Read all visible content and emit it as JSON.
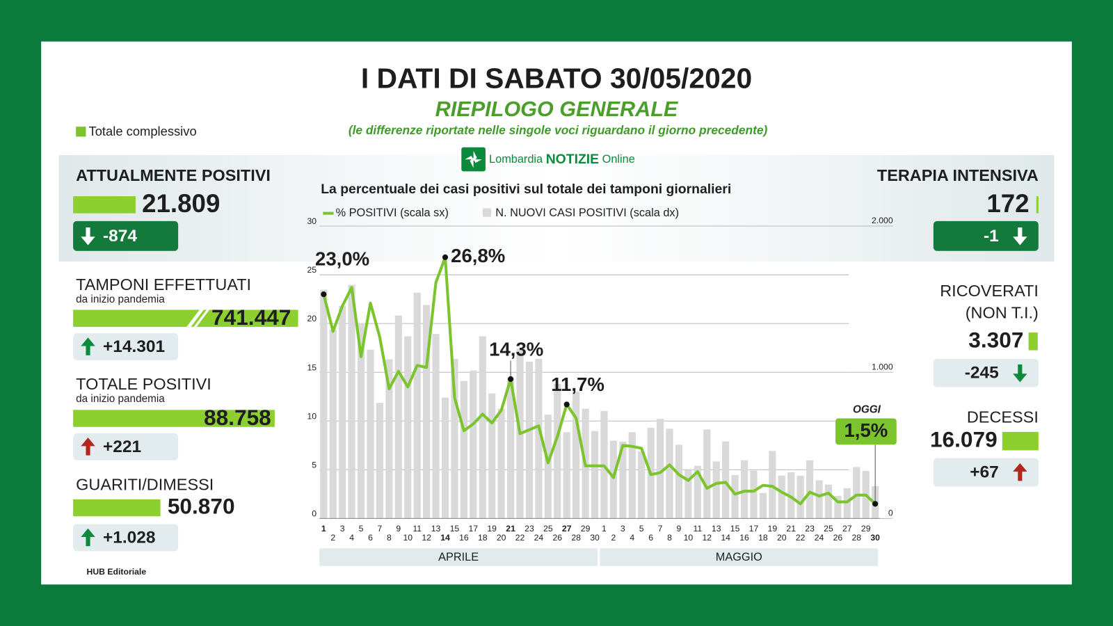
{
  "header": {
    "title": "I DATI DI SABATO 30/05/2020",
    "subtitle": "RIEPILOGO GENERALE",
    "note": "(le differenze riportate nelle singole voci riguardano il giorno precedente)",
    "legend": "Totale complessivo",
    "brand": [
      "Lombardia",
      "NOTIZIE",
      "Online"
    ]
  },
  "stats": {
    "left": [
      {
        "label": "ATTUALMENTE POSITIVI",
        "value": "21.809",
        "change": "-874",
        "trend_color": "#ffffff"
      },
      {
        "label": "TAMPONI EFFETTUATI",
        "sublabel": "da inizio pandemia",
        "value": "741.447",
        "change": "+14.301",
        "trend_color": "#0b8a3e"
      },
      {
        "label": "TOTALE POSITIVI",
        "sublabel": "da inizio pandemia",
        "value": "88.758",
        "change": "+221",
        "trend_color": "#b3261e"
      },
      {
        "label": "GUARITI/DIMESSI",
        "value": "50.870",
        "change": "+1.028",
        "trend_color": "#0b8a3e"
      }
    ],
    "right": [
      {
        "label": "TERAPIA INTENSIVA",
        "value": "172",
        "change": "-1",
        "trend_color": "#ffffff"
      },
      {
        "label": "RICOVERATI",
        "label_line2": "(NON T.I.)",
        "value": "3.307",
        "change": "-245",
        "trend_color": "#0b8a3e"
      },
      {
        "label": "DECESSI",
        "value": "16.079",
        "change": "+67",
        "trend_color": "#b3261e"
      }
    ]
  },
  "footer": "HUB Editoriale",
  "chart_data": {
    "type": "line",
    "title": "La percentuale dei casi positivi sul totale dei tamponi giornalieri",
    "categories": [
      "1",
      "2",
      "3",
      "4",
      "5",
      "6",
      "7",
      "8",
      "9",
      "10",
      "11",
      "12",
      "13",
      "14",
      "15",
      "16",
      "17",
      "18",
      "19",
      "20",
      "21",
      "22",
      "23",
      "24",
      "25",
      "26",
      "27",
      "28",
      "29",
      "30",
      "1",
      "2",
      "3",
      "4",
      "5",
      "6",
      "7",
      "8",
      "9",
      "10",
      "11",
      "12",
      "13",
      "14",
      "15",
      "16",
      "17",
      "18",
      "19",
      "20",
      "21",
      "22",
      "23",
      "24",
      "25",
      "26",
      "27",
      "28",
      "29",
      "30"
    ],
    "groups": [
      "APRILE",
      "MAGGIO"
    ],
    "series": [
      {
        "name": "% POSITIVI (scala sx)",
        "type": "line",
        "color": "#7cc42d",
        "values": [
          23.0,
          19.2,
          21.8,
          23.7,
          16.6,
          22.1,
          18.6,
          13.3,
          15.1,
          13.5,
          15.7,
          15.5,
          24.2,
          26.8,
          12.4,
          9.0,
          9.7,
          10.7,
          9.8,
          11.1,
          14.3,
          8.7,
          9.1,
          9.5,
          5.7,
          8.4,
          11.7,
          10.3,
          5.4,
          5.4,
          5.4,
          4.2,
          7.5,
          7.4,
          7.2,
          4.5,
          4.7,
          5.5,
          4.5,
          3.9,
          4.8,
          3.1,
          3.6,
          3.7,
          2.5,
          2.8,
          2.8,
          3.4,
          3.3,
          2.7,
          2.2,
          1.5,
          2.7,
          2.3,
          2.6,
          1.7,
          1.7,
          2.4,
          2.4,
          1.5
        ],
        "value_labels": [
          "23,0%",
          null,
          null,
          null,
          null,
          null,
          null,
          null,
          null,
          null,
          null,
          null,
          null,
          "26,8%",
          null,
          null,
          null,
          null,
          null,
          null,
          "14,3%",
          null,
          null,
          null,
          null,
          null,
          "11,7%",
          null,
          null,
          null,
          null,
          null,
          null,
          null,
          null,
          null,
          null,
          null,
          null,
          null,
          null,
          null,
          null,
          null,
          null,
          null,
          null,
          null,
          null,
          null,
          null,
          null,
          null,
          null,
          null,
          null,
          null,
          null,
          null,
          "1,5%"
        ]
      },
      {
        "name": "N. NUOVI CASI POSITIVI (scala dx)",
        "type": "bar",
        "axis": "y2",
        "color": "#d9d9d9",
        "values": [
          1565,
          1292,
          1455,
          1598,
          1337,
          1154,
          791,
          1089,
          1388,
          1246,
          1544,
          1460,
          1262,
          827,
          1091,
          941,
          1012,
          1246,
          855,
          751,
          960,
          1161,
          1073,
          1092,
          710,
          920,
          590,
          869,
          751,
          598,
          735,
          532,
          526,
          590,
          460,
          620,
          682,
          614,
          504,
          332,
          360,
          609,
          390,
          527,
          297,
          398,
          327,
          174,
          462,
          294,
          316,
          293,
          398,
          261,
          232,
          154,
          207,
          352,
          325,
          221
        ]
      }
    ],
    "today_label": "OGGI",
    "ylim": [
      0,
      30
    ],
    "yticks": [
      0,
      5,
      10,
      15,
      20,
      25,
      30
    ],
    "y2lim": [
      0,
      2000
    ],
    "y2ticks": [
      0,
      {
        "value": 1000,
        "label": "1.000"
      },
      {
        "value": 2000,
        "label": "2.000"
      }
    ],
    "grid": true
  }
}
